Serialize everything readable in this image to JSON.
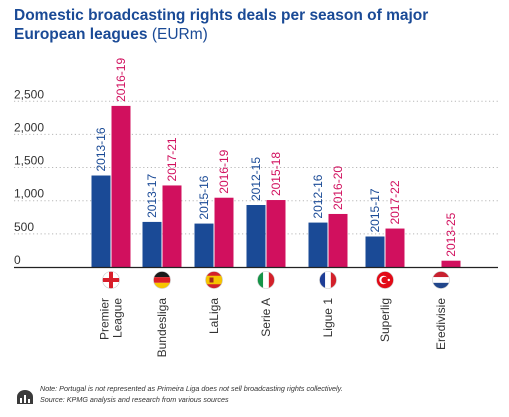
{
  "chart_data": {
    "type": "bar",
    "title": "Domestic broadcasting rights deals per season of major",
    "title_line2": "European leagues",
    "unit": "(EURm)",
    "ylim": [
      0,
      2700
    ],
    "yticks": [
      0,
      500,
      "1,000",
      "1,500",
      "2,000",
      "2,500"
    ],
    "ytick_labels": [
      "0",
      "500",
      "1,000",
      "1,500",
      "2,000",
      "2,500"
    ],
    "grid": true,
    "categories": [
      {
        "label": [
          "Premier",
          "League"
        ],
        "flag": "england-flag-icon"
      },
      {
        "label": [
          "Bundesliga"
        ],
        "flag": "germany-flag-icon"
      },
      {
        "label": [
          "LaLiga"
        ],
        "flag": "spain-flag-icon"
      },
      {
        "label": [
          "Serie A"
        ],
        "flag": "italy-flag-icon"
      },
      {
        "label": [
          "Ligue 1"
        ],
        "flag": "france-flag-icon"
      },
      {
        "label": [
          "Superlig"
        ],
        "flag": "turkey-flag-icon"
      },
      {
        "label": [
          "Eredivisie"
        ],
        "flag": "netherlands-flag-icon"
      }
    ],
    "series": [
      {
        "color": "#1a4a96",
        "values": [
          1380,
          680,
          655,
          935,
          670,
          460,
          null
        ],
        "labels": [
          "2013-16",
          "2013-17",
          "2015-16",
          "2012-15",
          "2012-16",
          "2015-17",
          null
        ]
      },
      {
        "color": "#d1105e",
        "values": [
          2430,
          1230,
          1045,
          1010,
          800,
          580,
          95
        ],
        "labels": [
          "2016-19",
          "2017-21",
          "2016-19",
          "2015-18",
          "2016-20",
          "2017-22",
          "2013-25"
        ]
      }
    ]
  },
  "notes": {
    "note": "Note: Portugal is not represented as Primeira Liga does not sell broadcasting rights collectively.",
    "source": "Source: KPMG analysis and research from various sources"
  },
  "colors": {
    "title": "#1a4a96",
    "axis": "#333333",
    "grid": "#b8b8b8"
  }
}
